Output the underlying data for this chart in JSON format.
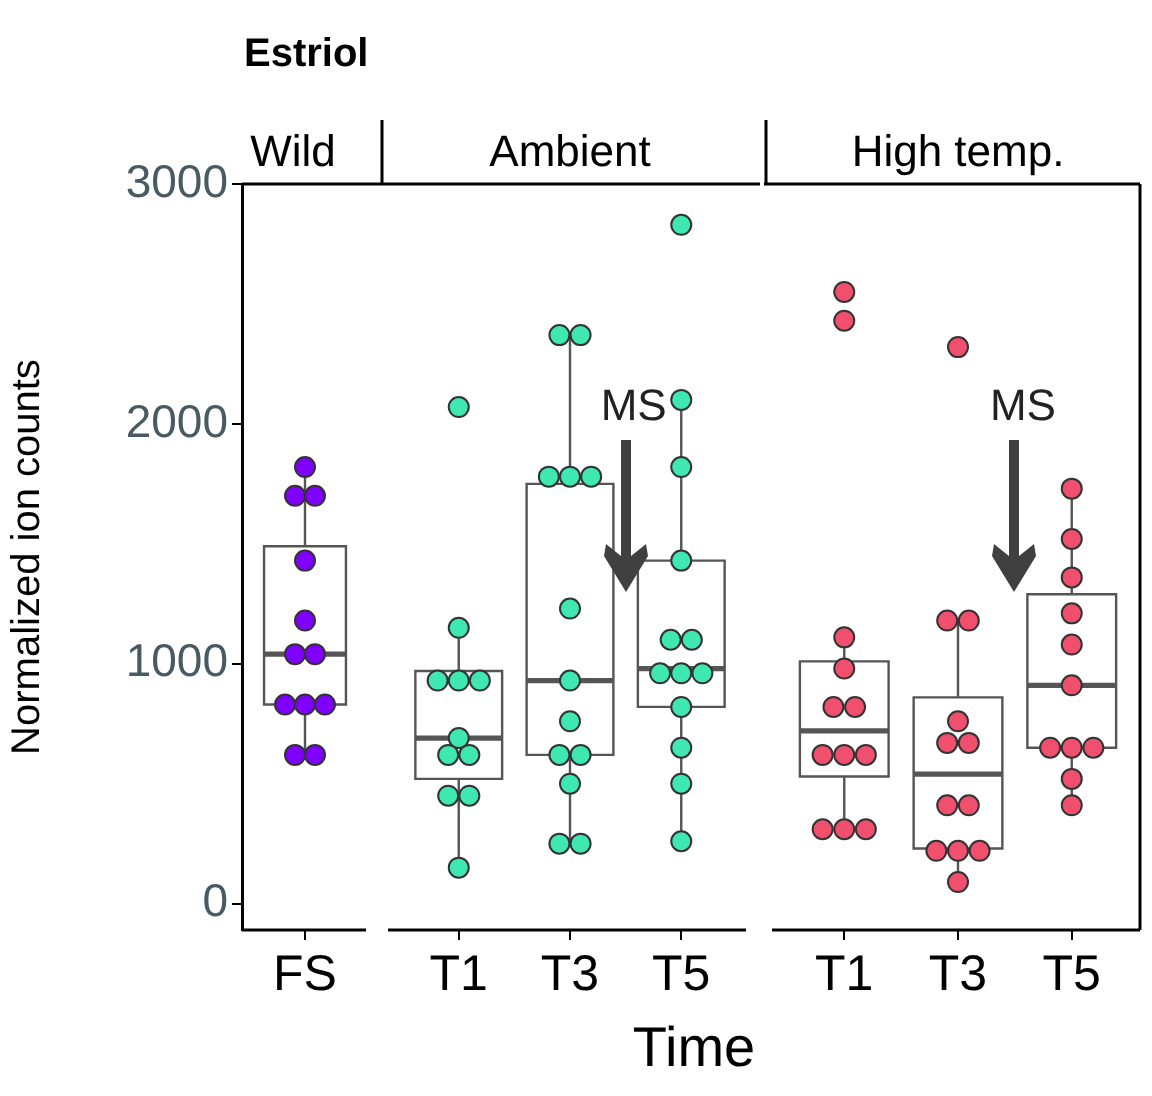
{
  "chart_data": [
    {
      "type": "box",
      "title": "Estriol",
      "subtitle": "Wild",
      "ylabel": "Normalized ion counts",
      "categories": [
        "FS"
      ],
      "ylim": [
        -110,
        3000
      ],
      "yticks": [
        0,
        1000,
        2000,
        3000
      ],
      "marker": "circle",
      "series": [
        {
          "color": "#555555",
          "boxes": [
            {
              "low": 620,
              "q1": 830,
              "median": 1040,
              "q3": 1490,
              "high": 1820
            }
          ]
        },
        {
          "type": "scatter",
          "color": "#7f00ff",
          "x": [
            "FS",
            "FS",
            "FS",
            "FS",
            "FS",
            "FS",
            "FS",
            "FS",
            "FS",
            "FS",
            "FS",
            "FS"
          ],
          "values": [
            1820,
            1700,
            1700,
            1430,
            1180,
            1040,
            1040,
            830,
            830,
            830,
            620,
            620
          ]
        }
      ]
    },
    {
      "type": "box",
      "subtitle": "Ambient",
      "xlabel": "Time",
      "categories": [
        "T1",
        "T3",
        "T5"
      ],
      "ylim": [
        -110,
        3000
      ],
      "tick_labels": "x",
      "marker": "circle",
      "annotations": [
        "MS"
      ],
      "series": [
        {
          "color": "#555555",
          "boxes": [
            {
              "low": 150,
              "q1": 520,
              "median": 690,
              "q3": 970,
              "high": 1150
            },
            {
              "low": 250,
              "q1": 620,
              "median": 930,
              "q3": 1750,
              "high": 2370
            },
            {
              "low": 260,
              "q1": 820,
              "median": 980,
              "q3": 1430,
              "high": 2100
            }
          ]
        },
        {
          "type": "scatter",
          "color": "#3ee8b0",
          "x": [
            "T1",
            "T1",
            "T1",
            "T1",
            "T1",
            "T1",
            "T1",
            "T1",
            "T1",
            "T1",
            "T1",
            "T3",
            "T3",
            "T3",
            "T3",
            "T3",
            "T3",
            "T3",
            "T3",
            "T3",
            "T3",
            "T3",
            "T3",
            "T3",
            "T5",
            "T5",
            "T5",
            "T5",
            "T5",
            "T5",
            "T5",
            "T5",
            "T5",
            "T5",
            "T5",
            "T5",
            "T5"
          ],
          "values": [
            2070,
            1150,
            930,
            930,
            930,
            690,
            620,
            620,
            450,
            450,
            150,
            2370,
            2370,
            1780,
            1780,
            1780,
            1230,
            930,
            760,
            620,
            620,
            500,
            250,
            250,
            2830,
            2100,
            1820,
            1430,
            1100,
            1100,
            960,
            960,
            960,
            820,
            650,
            500,
            260
          ]
        }
      ]
    },
    {
      "type": "box",
      "subtitle": "High temp.",
      "categories": [
        "T1",
        "T3",
        "T5"
      ],
      "ylim": [
        -110,
        3000
      ],
      "tick_labels": "x",
      "marker": "circle",
      "annotations": [
        "MS"
      ],
      "series": [
        {
          "color": "#555555",
          "boxes": [
            {
              "low": 310,
              "q1": 530,
              "median": 720,
              "q3": 1010,
              "high": 1110
            },
            {
              "low": 90,
              "q1": 230,
              "median": 540,
              "q3": 860,
              "high": 1180
            },
            {
              "low": 410,
              "q1": 650,
              "median": 910,
              "q3": 1290,
              "high": 1730
            }
          ]
        },
        {
          "type": "scatter",
          "color": "#f0506e",
          "x": [
            "T1",
            "T1",
            "T1",
            "T1",
            "T1",
            "T1",
            "T1",
            "T1",
            "T1",
            "T1",
            "T1",
            "T1",
            "T3",
            "T3",
            "T3",
            "T3",
            "T3",
            "T3",
            "T3",
            "T3",
            "T3",
            "T3",
            "T3",
            "T3",
            "T5",
            "T5",
            "T5",
            "T5",
            "T5",
            "T5",
            "T5",
            "T5",
            "T5",
            "T5",
            "T5"
          ],
          "values": [
            2550,
            2430,
            1110,
            980,
            820,
            820,
            620,
            620,
            620,
            310,
            310,
            310,
            2320,
            1180,
            1180,
            760,
            670,
            670,
            410,
            410,
            220,
            220,
            220,
            90,
            1730,
            1520,
            1360,
            1210,
            1080,
            910,
            650,
            650,
            650,
            520,
            410
          ]
        }
      ]
    }
  ]
}
